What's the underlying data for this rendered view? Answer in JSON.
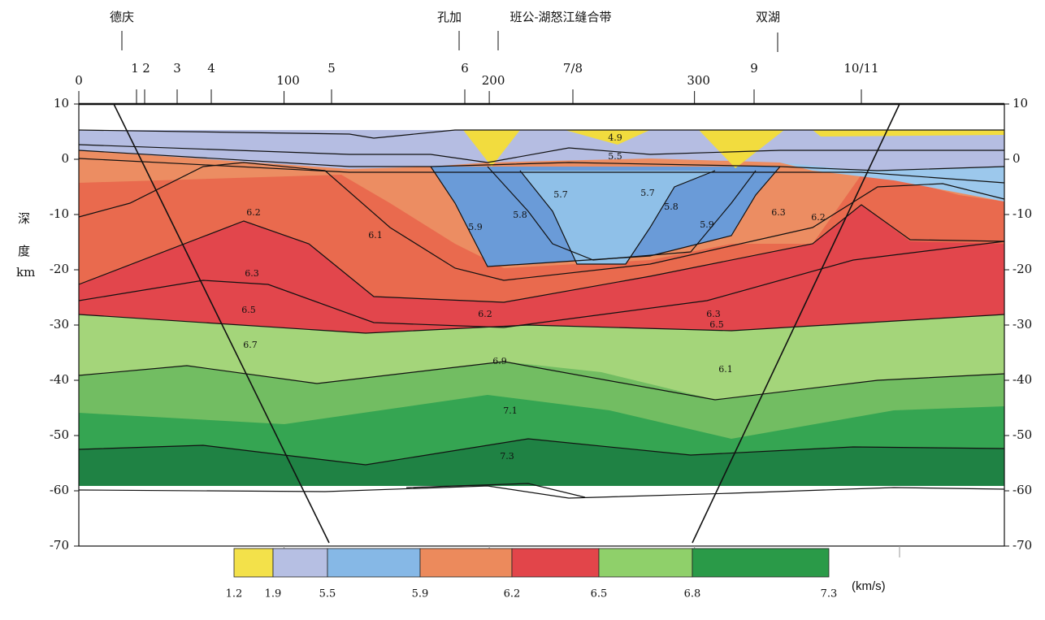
{
  "place_names": [
    "德庆",
    "孔加",
    "班公-湖怒江缝合带",
    "双湖"
  ],
  "stations": [
    "1",
    "2",
    "3",
    "4",
    "5",
    "6",
    "7/8",
    "9",
    "10/11"
  ],
  "chart_data": {
    "type": "section",
    "ylabel": "深度",
    "ylabel_unit": "km",
    "xlim": [
      0,
      451
    ],
    "xticks": [
      0,
      100,
      200,
      300
    ],
    "ylim": [
      -70,
      10
    ],
    "yticks": [
      10,
      0,
      -10,
      -20,
      -30,
      -40,
      -50,
      -60,
      -70
    ],
    "contour_labels": [
      "4.9",
      "5.5",
      "5.7",
      "5.7",
      "5.8",
      "5.8",
      "5.9",
      "5.9",
      "6.1",
      "6.2",
      "6.3",
      "6.5",
      "6.7",
      "6.9",
      "7.1",
      "7.3",
      "6.2",
      "6.3",
      "6.5",
      "6.1",
      "6.3",
      "6.2"
    ],
    "colorbar": {
      "boundaries": [
        1.2,
        1.9,
        5.5,
        5.9,
        6.2,
        6.5,
        6.8,
        7.3
      ],
      "colors": [
        "#f3e14a",
        "#b6bfe3",
        "#86b8e6",
        "#ec8a5c",
        "#e2454a",
        "#8fd06a",
        "#2a9a48"
      ],
      "unit": "(km/s)"
    }
  }
}
